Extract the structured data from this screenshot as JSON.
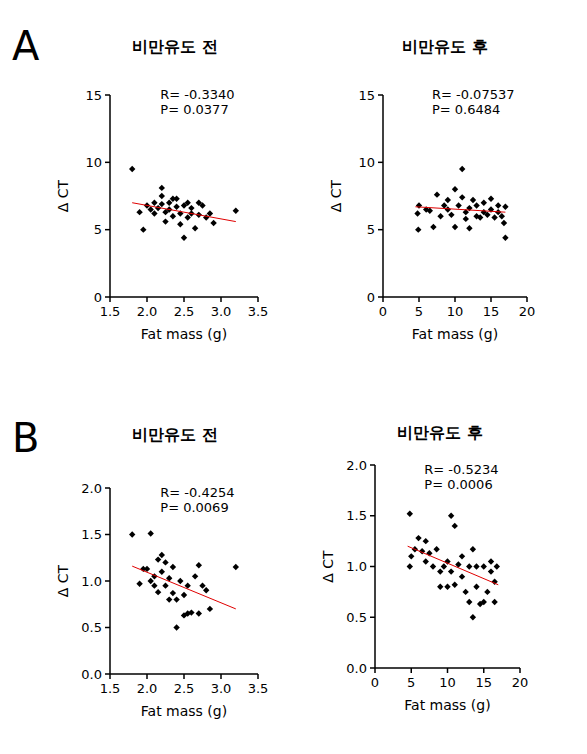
{
  "chart_data": [
    {
      "type": "scatter",
      "panel": "A",
      "title": "비만유도 전",
      "x_label": "Fat mass (g)",
      "y_label": "Δ CT",
      "color": "#000000",
      "marker": "diamond",
      "annotations": [
        "R= -0.3340",
        "P= 0.0377"
      ],
      "x": [
        1.8,
        1.9,
        1.95,
        2.0,
        2.05,
        2.1,
        2.1,
        2.15,
        2.2,
        2.2,
        2.2,
        2.25,
        2.25,
        2.3,
        2.3,
        2.35,
        2.35,
        2.4,
        2.4,
        2.45,
        2.45,
        2.5,
        2.5,
        2.55,
        2.55,
        2.6,
        2.6,
        2.65,
        2.7,
        2.7,
        2.75,
        2.8,
        2.85,
        2.9,
        3.2
      ],
      "values": [
        9.5,
        6.3,
        5.0,
        6.8,
        6.5,
        7.0,
        6.2,
        6.6,
        7.5,
        8.1,
        6.9,
        6.3,
        5.6,
        7.0,
        6.5,
        7.3,
        6.0,
        7.3,
        6.7,
        5.4,
        6.2,
        4.4,
        6.8,
        5.9,
        7.0,
        6.2,
        6.6,
        5.1,
        7.0,
        6.1,
        6.8,
        5.9,
        6.2,
        5.5,
        6.4
      ],
      "fit": {
        "x": [
          1.8,
          3.2
        ],
        "y": [
          7.0,
          5.6
        ]
      },
      "xlim": [
        1.5,
        3.5
      ],
      "xticks": [
        1.5,
        {
          "value": 2,
          "label": "2.0"
        },
        2.5,
        {
          "value": 3,
          "label": "3.0"
        },
        3.5
      ],
      "ylim": [
        0,
        15
      ],
      "yticks": [
        0,
        5,
        10,
        15
      ]
    },
    {
      "type": "scatter",
      "title": "비만유도 후",
      "x_label": "Fat mass (g)",
      "y_label": "Δ CT",
      "color": "#000000",
      "marker": "diamond",
      "annotations": [
        "R= -0.07537",
        "P= 0.6484"
      ],
      "x": [
        4.8,
        4.9,
        5,
        6,
        6.5,
        7,
        7.5,
        8,
        8.5,
        9,
        9,
        9.5,
        10,
        10,
        10.5,
        11,
        11,
        11.5,
        11.5,
        12,
        12,
        12.5,
        13,
        13,
        13.5,
        14,
        14,
        14.5,
        15,
        15,
        15.5,
        16,
        16,
        16.5,
        17,
        17,
        16.8
      ],
      "values": [
        6.2,
        5.0,
        6.8,
        6.5,
        6.4,
        5.2,
        7.6,
        6.0,
        6.8,
        6.5,
        7.2,
        6.1,
        8.0,
        5.2,
        6.8,
        9.5,
        7.4,
        5.8,
        6.3,
        6.6,
        5.1,
        7.2,
        6.0,
        6.8,
        5.9,
        7.0,
        6.3,
        6.1,
        7.3,
        6.5,
        5.9,
        6.3,
        6.8,
        6.0,
        6.7,
        4.4,
        5.5
      ],
      "fit": {
        "x": [
          4.5,
          17
        ],
        "y": [
          6.7,
          6.3
        ]
      },
      "xlim": [
        0,
        20
      ],
      "xticks": [
        0,
        5,
        10,
        15,
        20
      ],
      "ylim": [
        0,
        15
      ],
      "yticks": [
        0,
        5,
        10,
        15
      ]
    },
    {
      "type": "scatter",
      "panel": "B",
      "title": "비만유도 전",
      "x_label": "Fat mass (g)",
      "y_label": "Δ CT",
      "color": "#000000",
      "marker": "diamond",
      "annotations": [
        "R= -0.4254",
        "P= 0.0069"
      ],
      "x": [
        1.8,
        1.9,
        1.95,
        2.0,
        2.05,
        2.05,
        2.1,
        2.1,
        2.15,
        2.15,
        2.2,
        2.2,
        2.25,
        2.25,
        2.3,
        2.3,
        2.35,
        2.35,
        2.4,
        2.4,
        2.45,
        2.5,
        2.5,
        2.55,
        2.55,
        2.6,
        2.65,
        2.7,
        2.7,
        2.75,
        2.8,
        2.85,
        3.2
      ],
      "values": [
        1.5,
        0.97,
        1.13,
        1.13,
        1.51,
        1.0,
        0.95,
        1.05,
        1.23,
        0.88,
        1.28,
        1.1,
        1.2,
        0.95,
        1.03,
        0.8,
        0.87,
        1.15,
        0.5,
        0.8,
        1.0,
        0.63,
        0.85,
        0.95,
        0.65,
        0.66,
        1.05,
        0.65,
        1.17,
        0.95,
        0.9,
        0.7,
        1.15
      ],
      "fit": {
        "x": [
          1.8,
          3.2
        ],
        "y": [
          1.16,
          0.7
        ]
      },
      "xlim": [
        1.5,
        3.5
      ],
      "xticks": [
        1.5,
        {
          "value": 2,
          "label": "2.0"
        },
        2.5,
        {
          "value": 3,
          "label": "3.0"
        },
        3.5
      ],
      "ylim": [
        0,
        2
      ],
      "yticks": [
        {
          "value": 0,
          "label": "0.0"
        },
        0.5,
        {
          "value": 1,
          "label": "1.0"
        },
        1.5,
        {
          "value": 2,
          "label": "2.0"
        }
      ]
    },
    {
      "type": "scatter",
      "title": "비만유도 후",
      "x_label": "Fat mass (g)",
      "y_label": "Δ CT",
      "color": "#000000",
      "marker": "diamond",
      "annotations": [
        "R= -0.5234",
        "P= 0.0006"
      ],
      "x": [
        4.8,
        4.8,
        5,
        5.5,
        6,
        6.5,
        7,
        7,
        7.5,
        8,
        8.5,
        9,
        9,
        9.5,
        10,
        10,
        10.5,
        10.5,
        11,
        11,
        11.5,
        12,
        12,
        12.5,
        13,
        13,
        13.5,
        13.5,
        14,
        14,
        14.5,
        15,
        15,
        15.5,
        16,
        16,
        16.5,
        16.5,
        16.8
      ],
      "values": [
        1.0,
        1.52,
        1.1,
        1.17,
        1.28,
        1.15,
        1.25,
        1.05,
        1.13,
        1.0,
        1.17,
        0.8,
        0.95,
        1.0,
        0.8,
        1.05,
        1.5,
        0.95,
        0.82,
        1.4,
        1.02,
        0.9,
        1.1,
        0.75,
        1.0,
        0.65,
        0.5,
        1.17,
        1.0,
        0.8,
        0.63,
        0.65,
        1.0,
        0.75,
        0.95,
        1.05,
        0.65,
        0.85,
        1.0
      ],
      "fit": {
        "x": [
          4.5,
          17
        ],
        "y": [
          1.2,
          0.82
        ]
      },
      "xlim": [
        0,
        20
      ],
      "xticks": [
        0,
        5,
        10,
        15,
        20
      ],
      "ylim": [
        0,
        2
      ],
      "yticks": [
        {
          "value": 0,
          "label": "0.0"
        },
        0.5,
        {
          "value": 1,
          "label": "1.0"
        },
        1.5,
        {
          "value": 2,
          "label": "2.0"
        }
      ]
    }
  ]
}
